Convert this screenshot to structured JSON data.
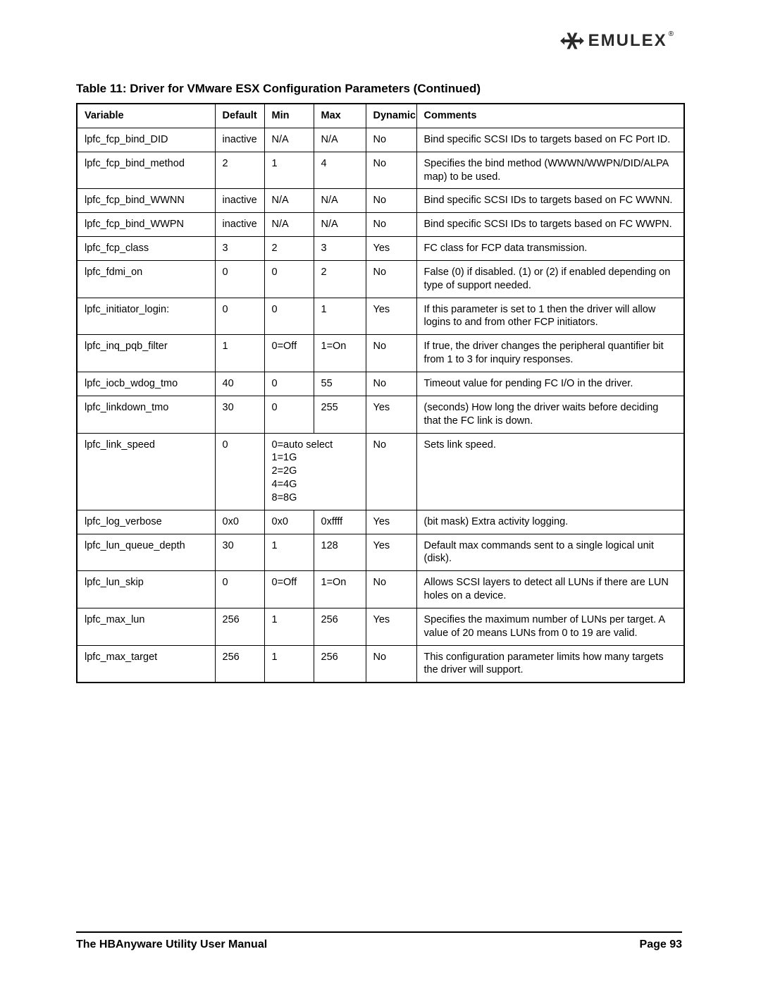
{
  "logo": {
    "text": "EMULEX",
    "reg": "®"
  },
  "table_caption": "Table 11: Driver for VMware ESX Configuration Parameters  (Continued)",
  "columns": [
    "Variable",
    "Default",
    "Min",
    "Max",
    "Dynamic",
    "Comments"
  ],
  "rows": [
    {
      "variable": "lpfc_fcp_bind_DID",
      "default": "inactive",
      "min": "N/A",
      "max": "N/A",
      "dynamic": "No",
      "comments": "Bind specific SCSI IDs to targets based on FC Port ID."
    },
    {
      "variable": "lpfc_fcp_bind_method",
      "default": "2",
      "min": "1",
      "max": "4",
      "dynamic": "No",
      "comments": "Specifies the bind method (WWWN/WWPN/DID/ALPA map) to be used."
    },
    {
      "variable": "lpfc_fcp_bind_WWNN",
      "default": "inactive",
      "min": "N/A",
      "max": "N/A",
      "dynamic": "No",
      "comments": "Bind specific SCSI IDs to targets based on FC WWNN."
    },
    {
      "variable": "lpfc_fcp_bind_WWPN",
      "default": "inactive",
      "min": "N/A",
      "max": "N/A",
      "dynamic": "No",
      "comments": "Bind specific SCSI IDs to targets based on FC WWPN."
    },
    {
      "variable": "lpfc_fcp_class",
      "default": "3",
      "min": "2",
      "max": "3",
      "dynamic": "Yes",
      "comments": "FC class for FCP data transmission."
    },
    {
      "variable": "lpfc_fdmi_on",
      "default": "0",
      "min": "0",
      "max": "2",
      "dynamic": "No",
      "comments": "False (0) if disabled. (1) or (2) if enabled depending on type of support needed."
    },
    {
      "variable": "lpfc_initiator_login:",
      "default": "0",
      "min": "0",
      "max": "1",
      "dynamic": "Yes",
      "comments": "If this parameter is set to 1 then the driver will allow logins to and from other FCP initiators."
    },
    {
      "variable": "lpfc_inq_pqb_filter",
      "default": "1",
      "min": "0=Off",
      "max": "1=On",
      "dynamic": "No",
      "comments": "If true, the driver changes the peripheral quantifier bit from 1 to 3 for inquiry responses."
    },
    {
      "variable": "lpfc_iocb_wdog_tmo",
      "default": "40",
      "min": "0",
      "max": "55",
      "dynamic": "No",
      "comments": "Timeout value for pending FC I/O in the driver."
    },
    {
      "variable": "lpfc_linkdown_tmo",
      "default": "30",
      "min": "0",
      "max": "255",
      "dynamic": "Yes",
      "comments": "(seconds) How long the driver waits before deciding that the FC link is down."
    },
    {
      "variable": "lpfc_link_speed",
      "default": "0",
      "minmax_merged": true,
      "minmax": "0=auto select\n1=1G\n2=2G\n4=4G\n8=8G",
      "dynamic": "No",
      "comments": "Sets link speed."
    },
    {
      "variable": "lpfc_log_verbose",
      "default": "0x0",
      "min": "0x0",
      "max": "0xffff",
      "dynamic": "Yes",
      "comments": "(bit mask) Extra activity logging."
    },
    {
      "variable": "lpfc_lun_queue_depth",
      "default": "30",
      "min": "1",
      "max": "128",
      "dynamic": "Yes",
      "comments": "Default max commands sent to a single logical unit (disk)."
    },
    {
      "variable": "lpfc_lun_skip",
      "default": "0",
      "min": "0=Off",
      "max": "1=On",
      "dynamic": "No",
      "comments": "Allows SCSI layers to detect all LUNs if there are LUN holes on a device."
    },
    {
      "variable": "lpfc_max_lun",
      "default": "256",
      "min": "1",
      "max": "256",
      "dynamic": "Yes",
      "comments": "Specifies the maximum number of LUNs per target. A value of 20 means LUNs from 0 to 19 are valid."
    },
    {
      "variable": "lpfc_max_target",
      "default": "256",
      "min": "1",
      "max": "256",
      "dynamic": "No",
      "comments": "This configuration parameter limits how many targets the driver will support."
    }
  ],
  "footer": {
    "left": "The HBAnyware Utility User Manual",
    "right": "Page 93"
  },
  "colors": {
    "text": "#000000",
    "bg": "#ffffff",
    "logo": "#2a2a2a",
    "border": "#000000"
  }
}
